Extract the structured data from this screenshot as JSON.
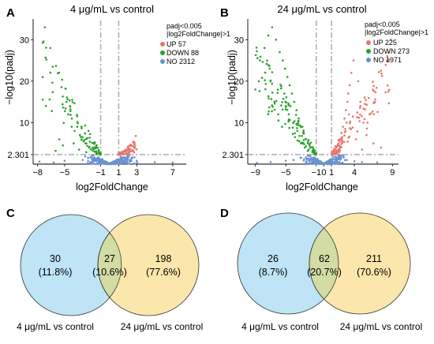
{
  "panels": {
    "A": {
      "letter": "A",
      "title": "4 μg/mL vs control",
      "threshold_text_1": "padj<0.005",
      "threshold_text_2": "|log2FoldChange|>1",
      "ylabel": "−log10(padj)",
      "xlabel": "log2FoldChange"
    },
    "B": {
      "letter": "B",
      "title": "24 μg/mL vs control",
      "threshold_text_1": "padj<0.005",
      "threshold_text_2": "|log2FoldChange|>1",
      "ylabel": "−log10(padj)",
      "xlabel": "log2FoldChange"
    },
    "C": {
      "letter": "C",
      "left_value": "30",
      "left_pct": "(11.8%)",
      "mid_value": "27",
      "mid_pct": "(10.6%)",
      "right_value": "198",
      "right_pct": "(77.6%)",
      "left_label": "4 μg/mL vs control",
      "right_label": "24 μg/mL vs control"
    },
    "D": {
      "letter": "D",
      "left_value": "26",
      "left_pct": "(8.7%)",
      "mid_value": "62",
      "mid_pct": "(20.7%)",
      "right_value": "211",
      "right_pct": "(70.6%)",
      "left_label": "4 μg/mL vs control",
      "right_label": "24 μg/mL vs control"
    }
  },
  "colors": {
    "up": "#e8756a",
    "down": "#2ca02c",
    "no": "#6a93cf",
    "venn_left": "#bfe4f5",
    "venn_right": "#fbe7ab",
    "venn_overlap": "#d2dca3",
    "threshold_line": "#b0b0b0"
  },
  "chart_data": [
    {
      "type": "scatter",
      "panel": "A",
      "title": "4 μg/mL vs control",
      "xlabel": "log2FoldChange",
      "ylabel": "−log10(padj)",
      "xlim": [
        -8.5,
        8.5
      ],
      "ylim": [
        0,
        35
      ],
      "x_ticks": [
        -8,
        -5,
        -1,
        1,
        3,
        7
      ],
      "x_tick_labels": [
        "−8",
        "−5",
        "−1",
        "1",
        "3",
        "7"
      ],
      "y_ticks": [
        2.301,
        10,
        20,
        30
      ],
      "y_tick_labels": [
        "2.301",
        "10",
        "20",
        "30"
      ],
      "thresholds": {
        "x": [
          -1,
          1
        ],
        "y": 2.301
      },
      "legend": {
        "position": "top-right"
      },
      "series": [
        {
          "name": "UP 57",
          "count": 57,
          "color_key": "up",
          "x_range": [
            1.0,
            3.0
          ],
          "y_range": [
            2.3,
            7.0
          ],
          "points": [
            [
              1.2,
              2.6
            ],
            [
              1.5,
              3.0
            ],
            [
              1.8,
              3.5
            ],
            [
              2.0,
              4.0
            ],
            [
              2.3,
              4.6
            ],
            [
              2.6,
              5.4
            ],
            [
              2.9,
              6.8
            ],
            [
              1.1,
              2.4
            ],
            [
              1.6,
              3.2
            ],
            [
              2.1,
              3.8
            ],
            [
              2.4,
              4.4
            ],
            [
              1.3,
              2.9
            ]
          ]
        },
        {
          "name": "DOWN 88",
          "count": 88,
          "color_key": "down",
          "x_range": [
            -7.5,
            -1.0
          ],
          "y_range": [
            2.3,
            33.0
          ],
          "points": [
            [
              -7.2,
              33
            ],
            [
              -6.6,
              28
            ],
            [
              -4.8,
              15
            ],
            [
              -4.6,
              12
            ],
            [
              -4.4,
              14
            ],
            [
              -4.2,
              11
            ],
            [
              -3.9,
              8
            ],
            [
              -3.6,
              9
            ],
            [
              -3.3,
              7
            ],
            [
              -3.1,
              6
            ],
            [
              -2.9,
              5.5
            ],
            [
              -2.7,
              5
            ],
            [
              -2.5,
              4.4
            ],
            [
              -2.3,
              4.0
            ],
            [
              -2.1,
              3.6
            ],
            [
              -1.9,
              3.3
            ],
            [
              -1.7,
              3.0
            ],
            [
              -1.5,
              2.8
            ],
            [
              -1.3,
              2.6
            ],
            [
              -1.1,
              2.4
            ],
            [
              -5.2,
              4.5
            ],
            [
              -6.0,
              3.2
            ],
            [
              -5.6,
              6.0
            ],
            [
              -4.0,
              5.0
            ],
            [
              -3.4,
              3.5
            ],
            [
              -2.6,
              2.9
            ]
          ]
        },
        {
          "name": "NO 2312",
          "count": 2312,
          "color_key": "no",
          "x_range": [
            -8.0,
            7.0
          ],
          "y_range": [
            0.0,
            2.3
          ],
          "points": [
            [
              -1.2,
              1.6
            ],
            [
              -0.8,
              1.2
            ],
            [
              -0.4,
              0.6
            ],
            [
              0,
              0.2
            ],
            [
              0.4,
              0.6
            ],
            [
              0.8,
              1.1
            ],
            [
              1.2,
              1.8
            ],
            [
              -2.0,
              2.0
            ],
            [
              2.0,
              2.1
            ],
            [
              -3.0,
              1.0
            ],
            [
              3.0,
              0.8
            ],
            [
              -5.0,
              0.8
            ],
            [
              5.0,
              0.5
            ],
            [
              7.0,
              0.4
            ],
            [
              -7.8,
              0.6
            ],
            [
              -6.2,
              0.4
            ],
            [
              -1.6,
              0.9
            ],
            [
              1.6,
              0.7
            ],
            [
              -2.4,
              1.5
            ],
            [
              2.5,
              1.4
            ]
          ]
        }
      ]
    },
    {
      "type": "scatter",
      "panel": "B",
      "title": "24 μg/mL vs control",
      "xlabel": "log2FoldChange",
      "ylabel": "−log10(padj)",
      "xlim": [
        -10,
        9.8
      ],
      "ylim": [
        0,
        35
      ],
      "x_ticks": [
        -9,
        -5,
        -1,
        0,
        1,
        4,
        9
      ],
      "x_tick_labels": [
        "−9",
        "−5",
        "−1",
        "0",
        "1",
        "4",
        "9"
      ],
      "y_ticks": [
        2.301,
        10,
        20,
        30
      ],
      "y_tick_labels": [
        "2.301",
        "10",
        "20",
        "30"
      ],
      "thresholds": {
        "x": [
          -1,
          1
        ],
        "y": 2.301
      },
      "legend": {
        "position": "top-right"
      },
      "series": [
        {
          "name": "UP 225",
          "count": 225,
          "color_key": "up",
          "x_range": [
            1.0,
            8.8
          ],
          "y_range": [
            2.3,
            30.0
          ],
          "points": [
            [
              1.3,
              3
            ],
            [
              1.6,
              4
            ],
            [
              1.9,
              5
            ],
            [
              2.1,
              6
            ],
            [
              2.3,
              7.5
            ],
            [
              2.5,
              9
            ],
            [
              2.7,
              11
            ],
            [
              2.9,
              13
            ],
            [
              3.1,
              15
            ],
            [
              3.2,
              17
            ],
            [
              3.4,
              19
            ],
            [
              3.6,
              22
            ],
            [
              3.9,
              25
            ],
            [
              4.5,
              20
            ],
            [
              4.8,
              14
            ],
            [
              5.2,
              10
            ],
            [
              5.6,
              7
            ],
            [
              6.5,
              5
            ],
            [
              7.5,
              4
            ],
            [
              8.8,
              30
            ],
            [
              1.5,
              3.5
            ],
            [
              2.0,
              4.5
            ],
            [
              2.4,
              6.5
            ],
            [
              2.8,
              8.5
            ],
            [
              3.3,
              12
            ],
            [
              3.0,
              10
            ],
            [
              1.8,
              2.8
            ],
            [
              4.2,
              6
            ],
            [
              5.0,
              3.5
            ],
            [
              6.0,
              12
            ]
          ]
        },
        {
          "name": "DOWN 273",
          "count": 273,
          "color_key": "down",
          "x_range": [
            -9.0,
            -1.0
          ],
          "y_range": [
            2.3,
            33.0
          ],
          "points": [
            [
              -1.2,
              2.6
            ],
            [
              -1.5,
              3.2
            ],
            [
              -1.8,
              4
            ],
            [
              -2.1,
              5
            ],
            [
              -2.4,
              6
            ],
            [
              -2.7,
              7.5
            ],
            [
              -3.0,
              9
            ],
            [
              -3.3,
              11
            ],
            [
              -3.6,
              13
            ],
            [
              -3.9,
              15
            ],
            [
              -4.2,
              17
            ],
            [
              -4.5,
              19
            ],
            [
              -4.8,
              21
            ],
            [
              -5.1,
              23
            ],
            [
              -5.4,
              25
            ],
            [
              -5.8,
              27
            ],
            [
              -6.3,
              30
            ],
            [
              -6.8,
              33
            ],
            [
              -7.3,
              31
            ],
            [
              -7.8,
              28
            ],
            [
              -8.4,
              25
            ],
            [
              -9.0,
              18
            ],
            [
              -3.5,
              8
            ],
            [
              -4.0,
              10
            ],
            [
              -4.6,
              12
            ],
            [
              -5.0,
              14
            ],
            [
              -2.5,
              4
            ],
            [
              -3.0,
              5
            ],
            [
              -5.5,
              9
            ],
            [
              -6.0,
              12
            ],
            [
              -6.5,
              15
            ],
            [
              -7.0,
              20
            ],
            [
              -2.0,
              3.5
            ],
            [
              -3.8,
              6.5
            ],
            [
              -4.4,
              14
            ],
            [
              -5.2,
              17
            ]
          ]
        },
        {
          "name": "NO 1971",
          "count": 1971,
          "color_key": "no",
          "x_range": [
            -9.0,
            9.0
          ],
          "y_range": [
            0.0,
            2.3
          ],
          "points": [
            [
              -1.2,
              1.6
            ],
            [
              -0.8,
              1.2
            ],
            [
              -0.4,
              0.6
            ],
            [
              0,
              0.2
            ],
            [
              0.4,
              0.6
            ],
            [
              0.8,
              1.1
            ],
            [
              1.2,
              1.8
            ],
            [
              -2.0,
              2.0
            ],
            [
              2.0,
              2.1
            ],
            [
              -3.0,
              1.5
            ],
            [
              3.0,
              1.0
            ],
            [
              -5.0,
              0.8
            ],
            [
              5.0,
              0.5
            ],
            [
              -7.0,
              0.5
            ],
            [
              -8.8,
              0.3
            ],
            [
              7.0,
              0.4
            ],
            [
              -2.6,
              1.2
            ],
            [
              2.6,
              1.6
            ],
            [
              -4.0,
              1.0
            ],
            [
              4.0,
              0.7
            ]
          ]
        }
      ]
    }
  ]
}
